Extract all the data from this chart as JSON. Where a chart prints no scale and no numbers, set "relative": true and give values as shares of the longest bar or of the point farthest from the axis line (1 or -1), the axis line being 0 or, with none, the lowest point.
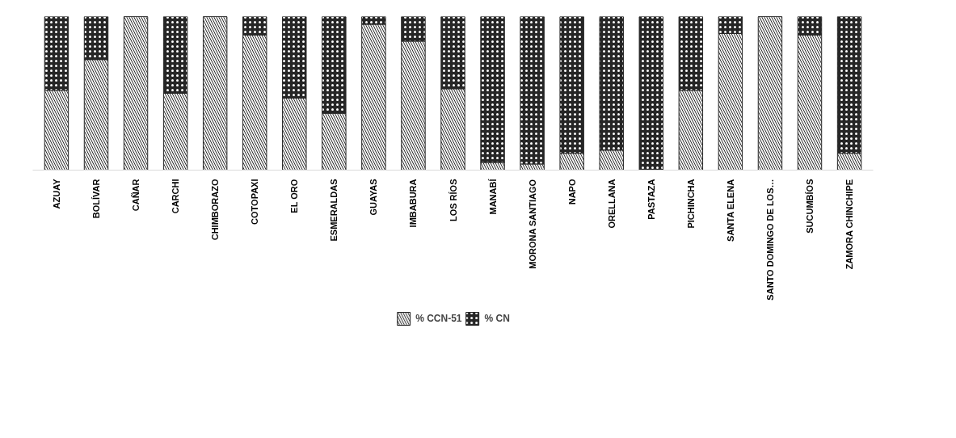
{
  "chart_data": {
    "type": "bar",
    "stacked": true,
    "relative": true,
    "grid": false,
    "legend": "bottom",
    "categories": [
      "AZUAY",
      "BOLÍVAR",
      "CAÑAR",
      "CARCHI",
      "CHIMBORAZO",
      "COTOPAXI",
      "EL ORO",
      "ESMERALDAS",
      "GUAYAS",
      "IMBABURA",
      "LOS RÍOS",
      "MANABÍ",
      "MORONA SANTIAGO",
      "NAPO",
      "ORELLANA",
      "PASTAZA",
      "PICHINCHA",
      "SANTA ELENA",
      "SANTO DOMINGO DE LOS…",
      "SUCUMBÍOS",
      "ZAMORA CHINCHIPE"
    ],
    "series": [
      {
        "name": "% CCN-51",
        "color": "#f2f2f2",
        "values": [
          0.52,
          0.72,
          1.0,
          0.5,
          1.0,
          0.88,
          0.47,
          0.37,
          0.95,
          0.84,
          0.53,
          0.05,
          0.04,
          0.11,
          0.13,
          0.0,
          0.52,
          0.89,
          1.0,
          0.88,
          0.11
        ]
      },
      {
        "name": "% CN",
        "color": "#262626",
        "values": [
          0.48,
          0.28,
          0.0,
          0.5,
          0.0,
          0.12,
          0.53,
          0.63,
          0.05,
          0.16,
          0.47,
          0.95,
          0.96,
          0.89,
          0.87,
          1.0,
          0.48,
          0.11,
          0.0,
          0.12,
          0.89
        ]
      }
    ]
  }
}
